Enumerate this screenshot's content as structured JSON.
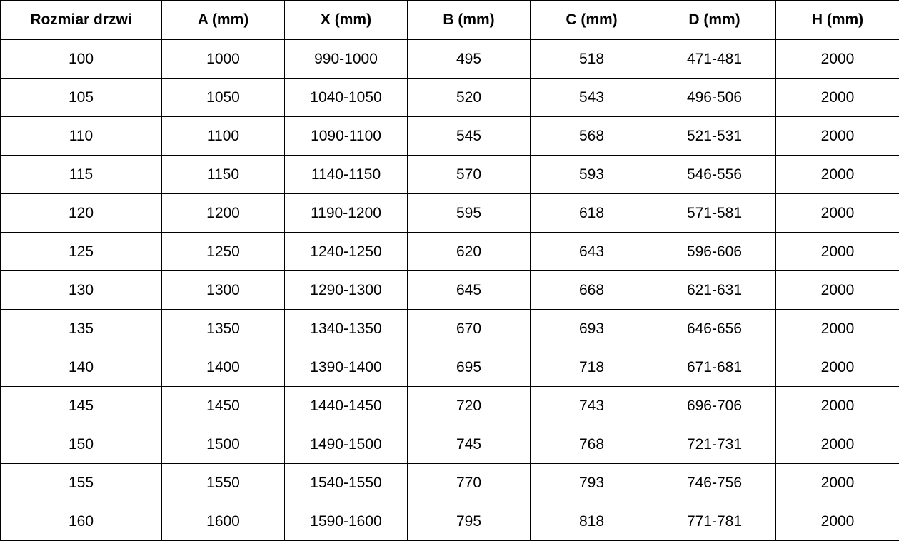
{
  "table": {
    "headers": [
      "Rozmiar drzwi",
      "A (mm)",
      "X (mm)",
      "B (mm)",
      "C (mm)",
      "D (mm)",
      "H (mm)"
    ],
    "rows": [
      [
        "100",
        "1000",
        "990-1000",
        "495",
        "518",
        "471-481",
        "2000"
      ],
      [
        "105",
        "1050",
        "1040-1050",
        "520",
        "543",
        "496-506",
        "2000"
      ],
      [
        "110",
        "1100",
        "1090-1100",
        "545",
        "568",
        "521-531",
        "2000"
      ],
      [
        "115",
        "1150",
        "1140-1150",
        "570",
        "593",
        "546-556",
        "2000"
      ],
      [
        "120",
        "1200",
        "1190-1200",
        "595",
        "618",
        "571-581",
        "2000"
      ],
      [
        "125",
        "1250",
        "1240-1250",
        "620",
        "643",
        "596-606",
        "2000"
      ],
      [
        "130",
        "1300",
        "1290-1300",
        "645",
        "668",
        "621-631",
        "2000"
      ],
      [
        "135",
        "1350",
        "1340-1350",
        "670",
        "693",
        "646-656",
        "2000"
      ],
      [
        "140",
        "1400",
        "1390-1400",
        "695",
        "718",
        "671-681",
        "2000"
      ],
      [
        "145",
        "1450",
        "1440-1450",
        "720",
        "743",
        "696-706",
        "2000"
      ],
      [
        "150",
        "1500",
        "1490-1500",
        "745",
        "768",
        "721-731",
        "2000"
      ],
      [
        "155",
        "1550",
        "1540-1550",
        "770",
        "793",
        "746-756",
        "2000"
      ],
      [
        "160",
        "1600",
        "1590-1600",
        "795",
        "818",
        "771-781",
        "2000"
      ]
    ]
  }
}
